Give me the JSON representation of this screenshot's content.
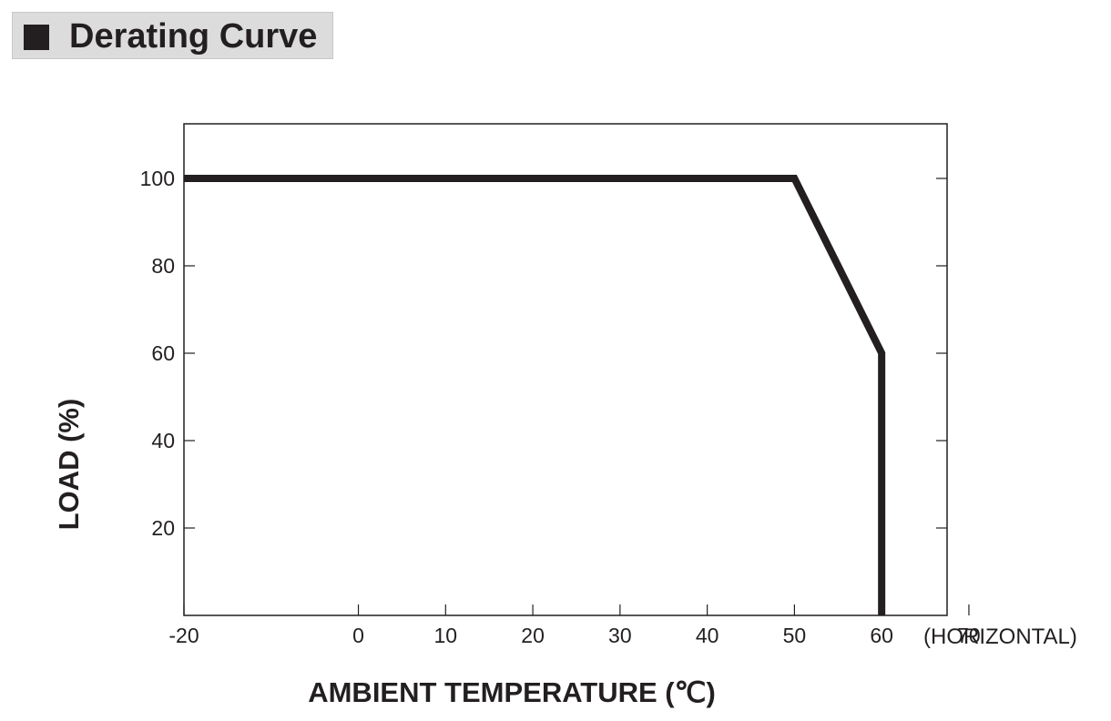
{
  "title": "Derating Curve",
  "chart_data": {
    "type": "line",
    "xlabel": "AMBIENT TEMPERATURE (℃)",
    "ylabel": "LOAD (%)",
    "x_note": "(HORIZONTAL)",
    "xlim": [
      -20,
      67.5
    ],
    "ylim": [
      0,
      112.5
    ],
    "x_ticks": [
      -20,
      0,
      10,
      20,
      30,
      40,
      50,
      60,
      70
    ],
    "y_ticks": [
      20,
      40,
      60,
      80,
      100
    ],
    "x_tick_labels": [
      "-20",
      "0",
      "10",
      "20",
      "30",
      "40",
      "50",
      "60",
      "70"
    ],
    "y_tick_labels": [
      "20",
      "40",
      "60",
      "80",
      "100"
    ],
    "grid": false,
    "line_color": "#231f20",
    "series": [
      {
        "x": [
          -20,
          50,
          60,
          60
        ],
        "y": [
          100,
          100,
          60,
          0
        ]
      }
    ]
  }
}
